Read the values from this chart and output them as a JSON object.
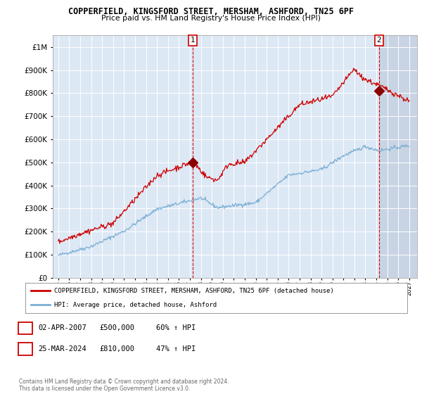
{
  "title": "COPPERFIELD, KINGSFORD STREET, MERSHAM, ASHFORD, TN25 6PF",
  "subtitle": "Price paid vs. HM Land Registry's House Price Index (HPI)",
  "legend_line1": "COPPERFIELD, KINGSFORD STREET, MERSHAM, ASHFORD, TN25 6PF (detached house)",
  "legend_line2": "HPI: Average price, detached house, Ashford",
  "annotation1_date": "02-APR-2007",
  "annotation1_price": "£500,000",
  "annotation1_hpi": "60% ↑ HPI",
  "annotation2_date": "25-MAR-2024",
  "annotation2_price": "£810,000",
  "annotation2_hpi": "47% ↑ HPI",
  "copyright": "Contains HM Land Registry data © Crown copyright and database right 2024.\nThis data is licensed under the Open Government Licence v3.0.",
  "hpi_color": "#7bafd4",
  "price_color": "#cc0000",
  "marker_color": "#8b0000",
  "bg_color": "#dde8f5",
  "future_color": "#c8d4e4",
  "grid_color": "#ffffff",
  "ylim": [
    0,
    1050000
  ],
  "xlim_start": 1994.5,
  "xlim_end": 2027.7,
  "sale1_x": 2007.25,
  "sale1_y": 500000,
  "sale2_x": 2024.23,
  "sale2_y": 810000
}
